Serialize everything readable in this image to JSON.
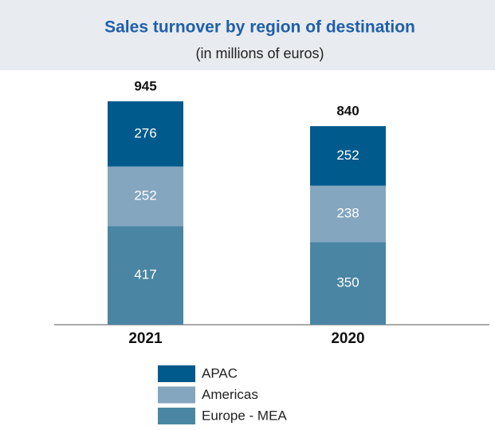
{
  "chart_data": {
    "type": "stacked-bar",
    "title": "Sales turnover by region of destination",
    "subtitle": "(in millions of euros)",
    "categories": [
      "2021",
      "2020"
    ],
    "totals": [
      945,
      840
    ],
    "series": [
      {
        "name": "APAC",
        "color": "#005a8c",
        "values": [
          276,
          252
        ]
      },
      {
        "name": "Americas",
        "color": "#84a6bf",
        "values": [
          252,
          238
        ]
      },
      {
        "name": "Europe - MEA",
        "color": "#4a86a3",
        "values": [
          417,
          350
        ]
      }
    ]
  }
}
